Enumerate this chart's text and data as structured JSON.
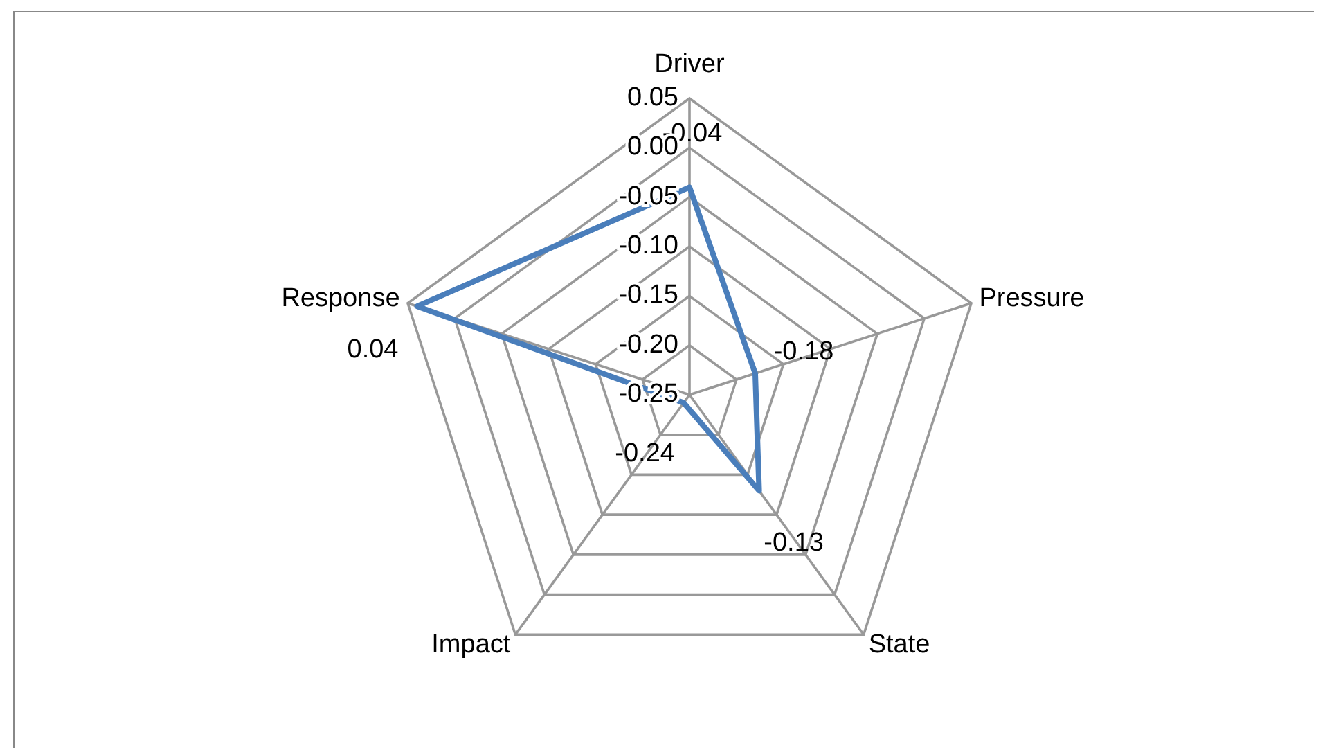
{
  "chart_data": {
    "type": "radar",
    "categories": [
      "Driver",
      "Pressure",
      "State",
      "Impact",
      "Response"
    ],
    "series": [
      {
        "color": "#4a7ebb",
        "values": [
          -0.04,
          -0.18,
          -0.13,
          -0.24,
          0.04
        ]
      }
    ],
    "ylim": [
      -0.25,
      0.05
    ],
    "yticks": [
      {
        "value": -0.25,
        "label": "-0.25"
      },
      {
        "value": -0.2,
        "label": "-0.20"
      },
      -0.15,
      {
        "value": -0.1,
        "label": "-0.10"
      },
      -0.05,
      {
        "value": 0,
        "label": "0.00"
      },
      0.05
    ],
    "data_labels": true,
    "grid": true
  }
}
